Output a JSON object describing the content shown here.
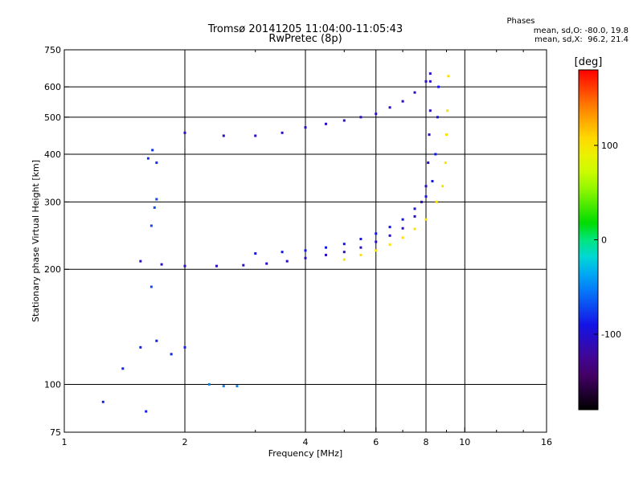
{
  "chart_data": {
    "type": "scatter",
    "title": "Tromsø 20141205 11:04:00-11:05:43",
    "subtitle": "RwPretec (8p)",
    "xlabel": "Frequency [MHz]",
    "ylabel": "Stationary phase Virtual Height [km]",
    "x_scale": "log",
    "y_scale": "log",
    "xlim": [
      1,
      16
    ],
    "ylim": [
      75,
      750
    ],
    "x_ticks": [
      1,
      2,
      4,
      6,
      8,
      10,
      16
    ],
    "x_tick_labels": [
      "1",
      "2",
      "4",
      "6",
      "8",
      "10",
      "16"
    ],
    "y_ticks": [
      75,
      100,
      200,
      300,
      400,
      500,
      600,
      750
    ],
    "y_tick_labels": [
      "75",
      "100",
      "200",
      "300",
      "400",
      "500",
      "600",
      "750"
    ],
    "grid": true,
    "stats": {
      "title": "Phases",
      "line1": "mean, sd,O: -80.0, 19.8",
      "line2": "mean, sd,X:  96.2, 21.4"
    },
    "colorbar": {
      "label": "[deg]",
      "ticks": [
        100,
        0,
        -100
      ],
      "tick_labels": [
        "100",
        "0",
        "-100"
      ],
      "range": [
        -180,
        180
      ]
    },
    "traces": [
      {
        "points": [
          [
            1.55,
            210
          ],
          [
            1.75,
            206
          ],
          [
            2.0,
            204
          ],
          [
            2.4,
            204
          ],
          [
            2.8,
            205
          ],
          [
            3.2,
            207
          ],
          [
            3.6,
            210
          ],
          [
            4.0,
            214
          ],
          [
            4.5,
            218
          ],
          [
            5.0,
            222
          ],
          [
            5.5,
            228
          ],
          [
            6.0,
            236
          ],
          [
            6.5,
            245
          ],
          [
            7.0,
            256
          ],
          [
            7.5,
            275
          ],
          [
            7.8,
            300
          ],
          [
            8.0,
            330
          ],
          [
            8.1,
            380
          ],
          [
            8.15,
            450
          ],
          [
            8.2,
            520
          ],
          [
            8.2,
            620
          ]
        ],
        "phase": -105
      },
      {
        "points": [
          [
            3.0,
            220
          ],
          [
            3.5,
            222
          ],
          [
            4.0,
            224
          ],
          [
            4.5,
            228
          ],
          [
            5.0,
            233
          ],
          [
            5.5,
            240
          ],
          [
            6.0,
            248
          ],
          [
            6.5,
            258
          ],
          [
            7.0,
            270
          ],
          [
            7.5,
            288
          ],
          [
            8.0,
            310
          ],
          [
            8.3,
            340
          ],
          [
            8.45,
            400
          ],
          [
            8.55,
            500
          ],
          [
            8.6,
            600
          ]
        ],
        "phase": -90
      },
      {
        "points": [
          [
            5.0,
            212
          ],
          [
            5.5,
            218
          ],
          [
            6.0,
            224
          ],
          [
            6.5,
            232
          ],
          [
            7.0,
            242
          ],
          [
            7.5,
            255
          ],
          [
            8.0,
            270
          ],
          [
            8.5,
            300
          ],
          [
            8.8,
            330
          ],
          [
            8.95,
            380
          ],
          [
            9.0,
            450
          ],
          [
            9.05,
            520
          ],
          [
            9.1,
            640
          ]
        ],
        "phase": 105
      },
      {
        "points": [
          [
            2.0,
            455
          ],
          [
            2.5,
            447
          ],
          [
            3.0,
            447
          ],
          [
            3.5,
            455
          ],
          [
            4.0,
            470
          ],
          [
            4.5,
            480
          ],
          [
            5.0,
            490
          ],
          [
            5.5,
            500
          ],
          [
            6.0,
            510
          ],
          [
            6.5,
            530
          ],
          [
            7.0,
            550
          ],
          [
            7.5,
            580
          ],
          [
            8.0,
            620
          ],
          [
            8.2,
            650
          ]
        ],
        "phase": -105
      },
      {
        "points": [
          [
            1.65,
            180
          ],
          [
            1.65,
            260
          ],
          [
            1.68,
            290
          ],
          [
            1.7,
            305
          ]
        ],
        "phase": -70
      },
      {
        "points": [
          [
            1.62,
            390
          ],
          [
            1.66,
            410
          ],
          [
            1.7,
            380
          ]
        ],
        "phase": -80
      },
      {
        "points": [
          [
            1.25,
            90
          ],
          [
            1.4,
            110
          ],
          [
            1.55,
            125
          ],
          [
            1.7,
            130
          ],
          [
            1.85,
            120
          ],
          [
            2.0,
            125
          ],
          [
            1.6,
            85
          ]
        ],
        "phase": -85
      },
      {
        "points": [
          [
            2.3,
            100
          ],
          [
            2.5,
            99
          ],
          [
            2.7,
            99
          ]
        ],
        "phase": -50
      }
    ]
  }
}
